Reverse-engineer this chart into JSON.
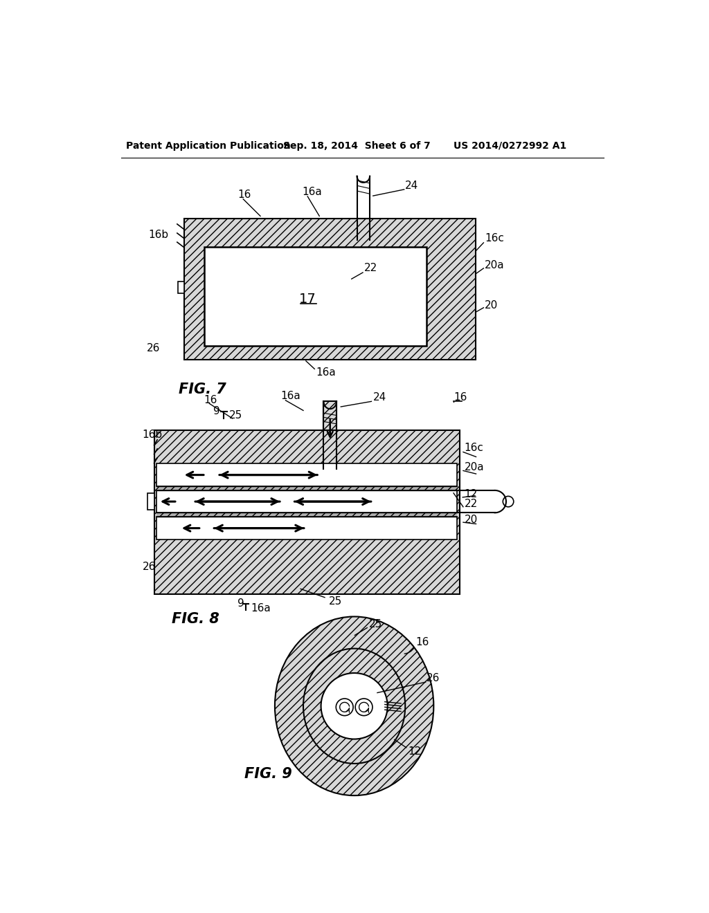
{
  "header_left": "Patent Application Publication",
  "header_mid": "Sep. 18, 2014  Sheet 6 of 7",
  "header_right": "US 2014/0272992 A1",
  "bg_color": "#ffffff",
  "hatch": "///",
  "hatch_fc": "#d8d8d8",
  "fig7_label": "FIG. 7",
  "fig8_label": "FIG. 8",
  "fig9_label": "FIG. 9"
}
